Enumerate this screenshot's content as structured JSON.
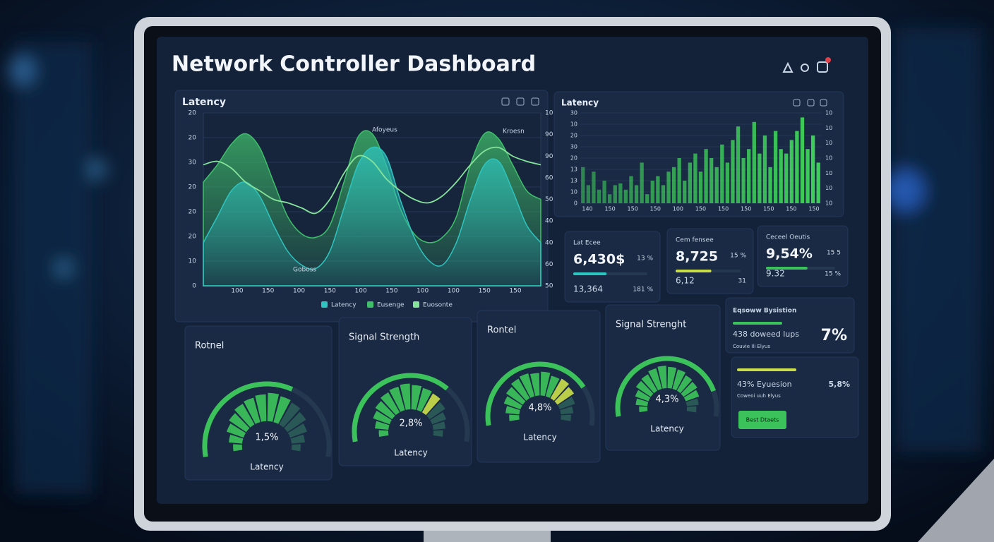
{
  "header": {
    "title": "Network Controller Dashboard"
  },
  "theme": {
    "active": "#3cc25a",
    "dim": "#2b5c58",
    "highlight": "#c9dc4a",
    "track": "#24384f"
  },
  "latency_chart": {
    "title": "Latency",
    "ylim": [
      0,
      100
    ],
    "left_labels": [
      "0",
      "10",
      "20",
      "20",
      "20",
      "30",
      "20",
      "20"
    ],
    "right_labels": [
      "50",
      "60",
      "40",
      "40",
      "50",
      "60",
      "90",
      "90",
      "10"
    ],
    "x_labels": [
      "100",
      "150",
      "100",
      "150",
      "100",
      "150",
      "100",
      "100",
      "150",
      "150"
    ],
    "annotations": [
      "Afoyeus",
      "Kroesn",
      "Goboss"
    ],
    "series": [
      {
        "name": "Latency",
        "color": "#2ec4c0",
        "fill": true,
        "values": [
          25,
          40,
          55,
          60,
          52,
          35,
          20,
          12,
          10,
          20,
          45,
          70,
          80,
          75,
          50,
          28,
          15,
          12,
          25,
          50,
          70,
          72,
          55,
          35,
          25
        ]
      },
      {
        "name": "Eusenge",
        "color": "#3fbf6a",
        "fill": true,
        "values": [
          60,
          70,
          82,
          88,
          80,
          60,
          40,
          30,
          28,
          35,
          60,
          86,
          88,
          70,
          45,
          30,
          25,
          28,
          40,
          70,
          88,
          85,
          70,
          55,
          50
        ]
      },
      {
        "name": "Euosonte",
        "color": "#86e39a",
        "fill": false,
        "values": [
          70,
          72,
          68,
          60,
          55,
          50,
          48,
          45,
          42,
          50,
          65,
          75,
          72,
          62,
          55,
          50,
          48,
          52,
          60,
          70,
          78,
          80,
          75,
          72,
          70
        ]
      }
    ]
  },
  "latency_bars": {
    "title": "Latency",
    "color": "#3ecf5a",
    "ylim": [
      0,
      100
    ],
    "left_labels": [
      "0",
      "10",
      "13",
      "13",
      "20",
      "30",
      "20",
      "10",
      "30"
    ],
    "right_labels": [
      "10",
      "10",
      "10",
      "10",
      "10",
      "10",
      "10"
    ],
    "x_labels": [
      "140",
      "150",
      "150",
      "150",
      "100",
      "150",
      "150",
      "150",
      "150",
      "150",
      "150"
    ],
    "values": [
      40,
      20,
      35,
      15,
      25,
      10,
      20,
      22,
      15,
      30,
      20,
      45,
      10,
      25,
      30,
      20,
      35,
      40,
      50,
      25,
      45,
      55,
      35,
      60,
      50,
      40,
      65,
      45,
      70,
      85,
      50,
      60,
      90,
      55,
      75,
      40,
      80,
      60,
      55,
      70,
      80,
      95,
      60,
      75,
      45
    ]
  },
  "stats": [
    {
      "label": "Lat Ecee",
      "value": "6,430$",
      "delta": "13 %",
      "sub": "13,364",
      "sub_delta": "181 %",
      "progress": 0.45,
      "color": "#2ec4c0"
    },
    {
      "label": "Cem fensee",
      "value": "8,725",
      "delta": "15 %",
      "sub": "6,12",
      "sub_delta": "31",
      "progress": 0.55,
      "color": "#c9dc4a"
    },
    {
      "label": "Ceceel Oeutis",
      "value": "9,54%",
      "delta": "15 5",
      "sub": "9.32",
      "sub_delta": "15 %",
      "progress": 0.6,
      "color": "#3cc25a"
    }
  ],
  "gauges": [
    {
      "title": "Rotnel",
      "value": "1,5%",
      "caption": "Latency",
      "arc": 0.62,
      "highlight": [],
      "segments": [
        0.3,
        0.45,
        0.6,
        0.7,
        0.8,
        0.85,
        0.9,
        0.95,
        0.9,
        0.85,
        0.75,
        0.6,
        0.45,
        0.3
      ]
    },
    {
      "title": "Signal Strength",
      "value": "2,8%",
      "caption": "Latency",
      "arc": 0.7,
      "highlight": [
        9
      ],
      "segments": [
        0.35,
        0.5,
        0.65,
        0.75,
        0.85,
        0.9,
        0.95,
        0.9,
        0.85,
        0.8,
        0.7,
        0.55,
        0.45,
        0.35
      ]
    },
    {
      "title": "Rontel",
      "value": "4,8%",
      "caption": "Latency",
      "arc": 0.78,
      "highlight": [
        9,
        10
      ],
      "segments": [
        0.4,
        0.55,
        0.7,
        0.8,
        0.9,
        0.95,
        0.9,
        0.95,
        0.85,
        0.9,
        0.8,
        0.65,
        0.5,
        0.4
      ]
    },
    {
      "title": "Signal Strenght",
      "value": "4,3%",
      "caption": "Latency",
      "arc": 0.85,
      "highlight": [],
      "segments": [
        0.35,
        0.5,
        0.6,
        0.75,
        0.8,
        0.9,
        0.95,
        0.9,
        0.85,
        0.75,
        0.7,
        0.6,
        0.5,
        0.4
      ]
    }
  ],
  "side": [
    {
      "title": "Eqsoww Bysistion",
      "value": "438 doweed lups",
      "big": "7%",
      "note": "Couvie Ili Elyus",
      "progress": 0.5,
      "color": "#3cc25a"
    },
    {
      "value": "43% Eyuesion",
      "big": "5,8%",
      "note": "Coweoi uuh Elyus",
      "progress": 0.6,
      "color": "#c9dc4a",
      "button": "Best Dtaets"
    }
  ]
}
